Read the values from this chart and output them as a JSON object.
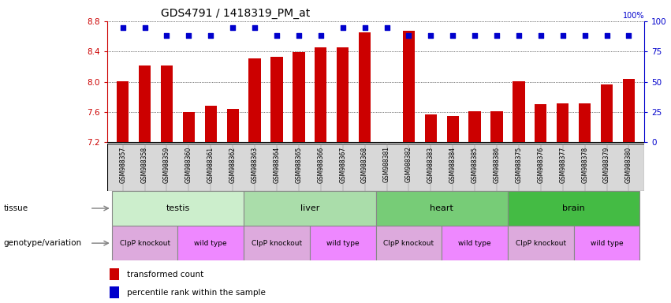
{
  "title": "GDS4791 / 1418319_PM_at",
  "samples": [
    "GSM988357",
    "GSM988358",
    "GSM988359",
    "GSM988360",
    "GSM988361",
    "GSM988362",
    "GSM988363",
    "GSM988364",
    "GSM988365",
    "GSM988366",
    "GSM988367",
    "GSM988368",
    "GSM988381",
    "GSM988382",
    "GSM988383",
    "GSM988384",
    "GSM988385",
    "GSM988386",
    "GSM988375",
    "GSM988376",
    "GSM988377",
    "GSM988378",
    "GSM988379",
    "GSM988380"
  ],
  "bar_values": [
    8.01,
    8.22,
    8.22,
    7.6,
    7.68,
    7.64,
    8.31,
    8.33,
    8.39,
    8.46,
    8.45,
    8.65,
    7.21,
    8.67,
    7.57,
    7.55,
    7.61,
    7.61,
    8.01,
    7.71,
    7.72,
    7.72,
    7.97,
    8.04
  ],
  "percentile_values": [
    95,
    95,
    88,
    88,
    88,
    95,
    95,
    88,
    88,
    88,
    95,
    95,
    95,
    88,
    88,
    88,
    88,
    88,
    88,
    88,
    88,
    88,
    88,
    88
  ],
  "ymin": 7.2,
  "ymax": 8.8,
  "yticks_left": [
    7.2,
    7.6,
    8.0,
    8.4,
    8.8
  ],
  "yticks_right": [
    0,
    25,
    50,
    75,
    100
  ],
  "bar_color": "#cc0000",
  "dot_color": "#0000cc",
  "tissue_groups": [
    {
      "label": "testis",
      "start": 0,
      "end": 6,
      "color": "#cceecc"
    },
    {
      "label": "liver",
      "start": 6,
      "end": 12,
      "color": "#aaddaa"
    },
    {
      "label": "heart",
      "start": 12,
      "end": 18,
      "color": "#77cc77"
    },
    {
      "label": "brain",
      "start": 18,
      "end": 24,
      "color": "#44bb44"
    }
  ],
  "genotype_groups": [
    {
      "label": "ClpP knockout",
      "start": 0,
      "end": 3,
      "color": "#ddaadd"
    },
    {
      "label": "wild type",
      "start": 3,
      "end": 6,
      "color": "#ee88ff"
    },
    {
      "label": "ClpP knockout",
      "start": 6,
      "end": 9,
      "color": "#ddaadd"
    },
    {
      "label": "wild type",
      "start": 9,
      "end": 12,
      "color": "#ee88ff"
    },
    {
      "label": "ClpP knockout",
      "start": 12,
      "end": 15,
      "color": "#ddaadd"
    },
    {
      "label": "wild type",
      "start": 15,
      "end": 18,
      "color": "#ee88ff"
    },
    {
      "label": "ClpP knockout",
      "start": 18,
      "end": 21,
      "color": "#ddaadd"
    },
    {
      "label": "wild type",
      "start": 21,
      "end": 24,
      "color": "#ee88ff"
    }
  ],
  "legend_bar_label": "transformed count",
  "legend_dot_label": "percentile rank within the sample",
  "left_axis_color": "#cc0000",
  "right_axis_color": "#0000cc"
}
